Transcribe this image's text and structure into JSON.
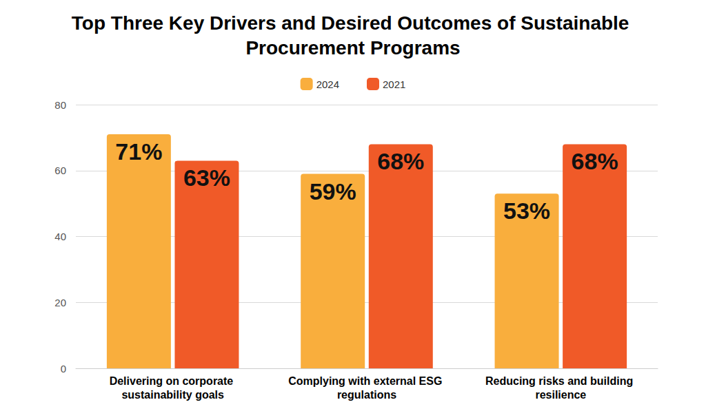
{
  "chart_data": {
    "type": "bar",
    "title": "Top Three Key Drivers and Desired Outcomes of Sustainable Procurement Programs",
    "categories": [
      "Delivering on corporate sustainability goals",
      "Complying with external ESG regulations",
      "Reducing risks and building resilience"
    ],
    "series": [
      {
        "name": "2024",
        "color": "#f9ae3d",
        "values": [
          71,
          59,
          53
        ],
        "value_labels": [
          "71%",
          "59%",
          "53%"
        ]
      },
      {
        "name": "2021",
        "color": "#f05a28",
        "values": [
          63,
          68,
          68
        ],
        "value_labels": [
          "63%",
          "68%",
          "68%"
        ]
      }
    ],
    "ylim": [
      0,
      80
    ],
    "yticks": [
      0,
      20,
      40,
      60,
      80
    ],
    "grid": true,
    "legend": "top",
    "data_labels": true
  }
}
